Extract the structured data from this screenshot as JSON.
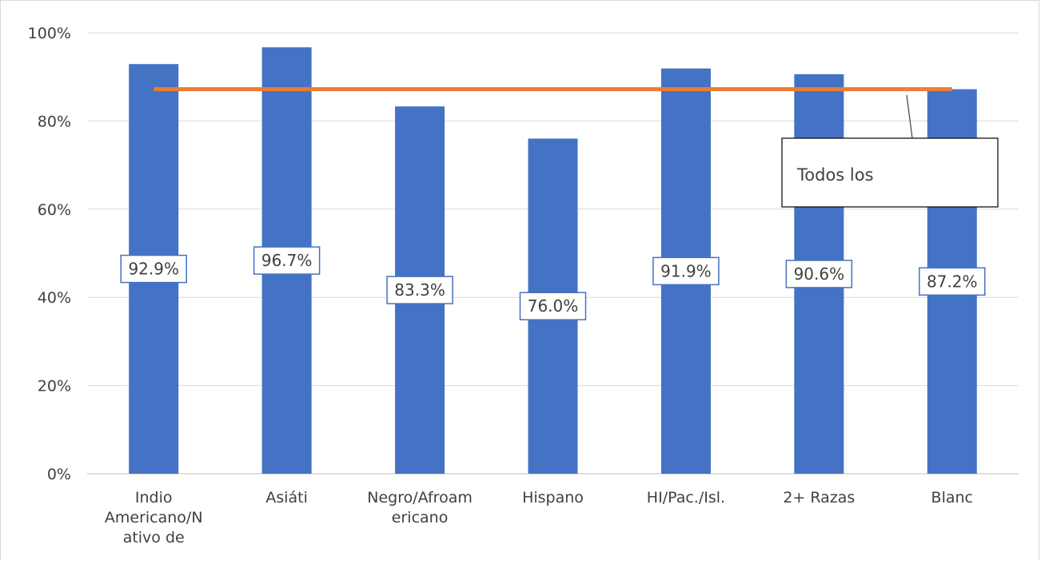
{
  "chart_data": {
    "type": "bar",
    "categories": [
      [
        "Indio",
        "Americano/N",
        "ativo de"
      ],
      [
        "Asiáti"
      ],
      [
        "Negro/Afroam",
        "ericano"
      ],
      [
        "Hispano"
      ],
      [
        "HI/Pac./Isl."
      ],
      [
        "2+ Razas"
      ],
      [
        "Blanc"
      ]
    ],
    "values": [
      92.9,
      96.7,
      83.3,
      76.0,
      91.9,
      90.6,
      87.2
    ],
    "data_labels": [
      "92.9%",
      "96.7%",
      "83.3%",
      "76.0%",
      "91.9%",
      "90.6%",
      "87.2%"
    ],
    "reference_line": {
      "value": 87.2,
      "label": "Todos los",
      "color": "#ED7D31"
    },
    "bar_color": "#4472C4",
    "ylim": [
      0,
      100
    ],
    "yticks": [
      0,
      20,
      40,
      60,
      80,
      100
    ],
    "ytick_labels": [
      "0%",
      "20%",
      "40%",
      "60%",
      "80%",
      "100%"
    ],
    "grid": true,
    "title": "",
    "xlabel": "",
    "ylabel": ""
  }
}
